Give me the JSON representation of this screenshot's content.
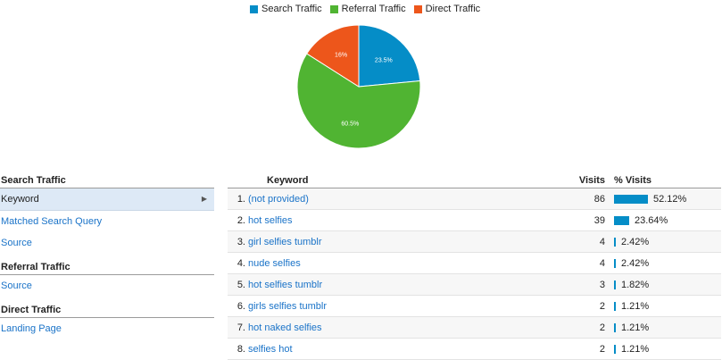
{
  "legend": [
    {
      "label": "Search Traffic",
      "color": "#058dc7"
    },
    {
      "label": "Referral Traffic",
      "color": "#50b432"
    },
    {
      "label": "Direct Traffic",
      "color": "#ed561b"
    }
  ],
  "chart_data": {
    "type": "pie",
    "slices": [
      {
        "name": "Search Traffic",
        "value": 23.5,
        "label": "23.5%",
        "color": "#058dc7"
      },
      {
        "name": "Referral Traffic",
        "value": 60.5,
        "label": "60.5%",
        "color": "#50b432"
      },
      {
        "name": "Direct Traffic",
        "value": 16,
        "label": "16%",
        "color": "#ed561b"
      }
    ],
    "legend_position": "top"
  },
  "sidebar": {
    "sections": [
      {
        "heading": "Search Traffic",
        "items": [
          "Keyword",
          "Matched Search Query",
          "Source"
        ]
      },
      {
        "heading": "Referral Traffic",
        "items": [
          "Source"
        ]
      },
      {
        "heading": "Direct Traffic",
        "items": [
          "Landing Page"
        ]
      }
    ],
    "active": "Keyword"
  },
  "table": {
    "headers": {
      "keyword": "Keyword",
      "visits": "Visits",
      "pct": "% Visits"
    },
    "rows": [
      {
        "num": "1.",
        "keyword": "(not provided)",
        "visits": "86",
        "pct": "52.12%",
        "pct_value": 52.12
      },
      {
        "num": "2.",
        "keyword": "hot selfies",
        "visits": "39",
        "pct": "23.64%",
        "pct_value": 23.64
      },
      {
        "num": "3.",
        "keyword": "girl selfies tumblr",
        "visits": "4",
        "pct": "2.42%",
        "pct_value": 2.42
      },
      {
        "num": "4.",
        "keyword": "nude selfies",
        "visits": "4",
        "pct": "2.42%",
        "pct_value": 2.42
      },
      {
        "num": "5.",
        "keyword": "hot selfies tumblr",
        "visits": "3",
        "pct": "1.82%",
        "pct_value": 1.82
      },
      {
        "num": "6.",
        "keyword": "girls selfies tumblr",
        "visits": "2",
        "pct": "1.21%",
        "pct_value": 1.21
      },
      {
        "num": "7.",
        "keyword": "hot naked selfies",
        "visits": "2",
        "pct": "1.21%",
        "pct_value": 1.21
      },
      {
        "num": "8.",
        "keyword": "selfies hot",
        "visits": "2",
        "pct": "1.21%",
        "pct_value": 1.21
      }
    ]
  }
}
